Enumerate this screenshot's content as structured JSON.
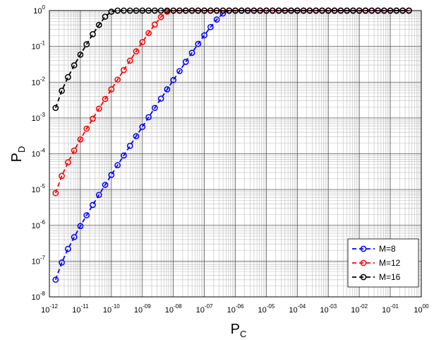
{
  "chart_data": {
    "type": "line",
    "xlabel": {
      "base": "P",
      "sub": "C"
    },
    "ylabel": {
      "base": "P",
      "sub": "D"
    },
    "xscale": "log",
    "yscale": "log",
    "xlim": [
      1e-12,
      1
    ],
    "ylim": [
      1e-08,
      1
    ],
    "x_ticks": {
      "base": "10",
      "exponents": [
        "-12",
        "-11",
        "-10",
        "-09",
        "-08",
        "-07",
        "-06",
        "-05",
        "-04",
        "-03",
        "-02",
        "-01",
        "00"
      ]
    },
    "y_ticks": {
      "base": "10",
      "exponents": [
        "-8",
        "-7",
        "-6",
        "-5",
        "-4",
        "-3",
        "-2",
        "-1",
        "0"
      ]
    },
    "grid": true,
    "legend_position": "bottom-right",
    "marker": "circle",
    "line_style": "dashed",
    "x_log10": [
      -11.8,
      -11.6,
      -11.4,
      -11.2,
      -11.0,
      -10.8,
      -10.6,
      -10.4,
      -10.2,
      -10.0,
      -9.8,
      -9.6,
      -9.4,
      -9.2,
      -9.0,
      -8.8,
      -8.6,
      -8.4,
      -8.2,
      -8.0,
      -7.8,
      -7.6,
      -7.4,
      -7.2,
      -7.0,
      -6.8,
      -6.6,
      -6.4,
      -6.2,
      -6.0,
      -5.8,
      -5.6,
      -5.4,
      -5.2,
      -5.0,
      -4.8,
      -4.6,
      -4.4,
      -4.2,
      -4.0,
      -3.8,
      -3.6,
      -3.4,
      -3.2,
      -3.0,
      -2.8,
      -2.6,
      -2.4,
      -2.2,
      -2.0,
      -1.8,
      -1.6,
      -1.4,
      -1.2,
      -1.0,
      -0.8,
      -0.6,
      -0.4
    ],
    "series": [
      {
        "name": "M=8",
        "color": "#0000ff",
        "y_log10": [
          -7.52,
          -7.04,
          -6.66,
          -6.33,
          -6.02,
          -5.72,
          -5.43,
          -5.15,
          -4.87,
          -4.59,
          -4.32,
          -4.05,
          -3.78,
          -3.51,
          -3.25,
          -2.98,
          -2.72,
          -2.46,
          -2.2,
          -1.94,
          -1.69,
          -1.43,
          -1.18,
          -0.93,
          -0.69,
          -0.46,
          -0.25,
          -0.08,
          0,
          0,
          0,
          0,
          0,
          0,
          0,
          0,
          0,
          0,
          0,
          0,
          0,
          0,
          0,
          0,
          0,
          0,
          0,
          0,
          0,
          0,
          0,
          0,
          0,
          0,
          0,
          0,
          0,
          0
        ]
      },
      {
        "name": "M=12",
        "color": "#ff0000",
        "y_log10": [
          -5.1,
          -4.62,
          -4.24,
          -3.91,
          -3.6,
          -3.3,
          -3.02,
          -2.74,
          -2.47,
          -2.2,
          -1.93,
          -1.66,
          -1.4,
          -1.14,
          -0.88,
          -0.63,
          -0.39,
          -0.18,
          -0.03,
          0,
          0,
          0,
          0,
          0,
          0,
          0,
          0,
          0,
          0,
          0,
          0,
          0,
          0,
          0,
          0,
          0,
          0,
          0,
          0,
          0,
          0,
          0,
          0,
          0,
          0,
          0,
          0,
          0,
          0,
          0,
          0,
          0,
          0,
          0,
          0,
          0,
          0,
          0
        ]
      },
      {
        "name": "M=16",
        "color": "#000000",
        "y_log10": [
          -2.72,
          -2.24,
          -1.86,
          -1.53,
          -1.23,
          -0.94,
          -0.66,
          -0.4,
          -0.17,
          -0.03,
          0,
          0,
          0,
          0,
          0,
          0,
          0,
          0,
          0,
          0,
          0,
          0,
          0,
          0,
          0,
          0,
          0,
          0,
          0,
          0,
          0,
          0,
          0,
          0,
          0,
          0,
          0,
          0,
          0,
          0,
          0,
          0,
          0,
          0,
          0,
          0,
          0,
          0,
          0,
          0,
          0,
          0,
          0,
          0,
          0,
          0,
          0,
          0
        ]
      }
    ]
  }
}
